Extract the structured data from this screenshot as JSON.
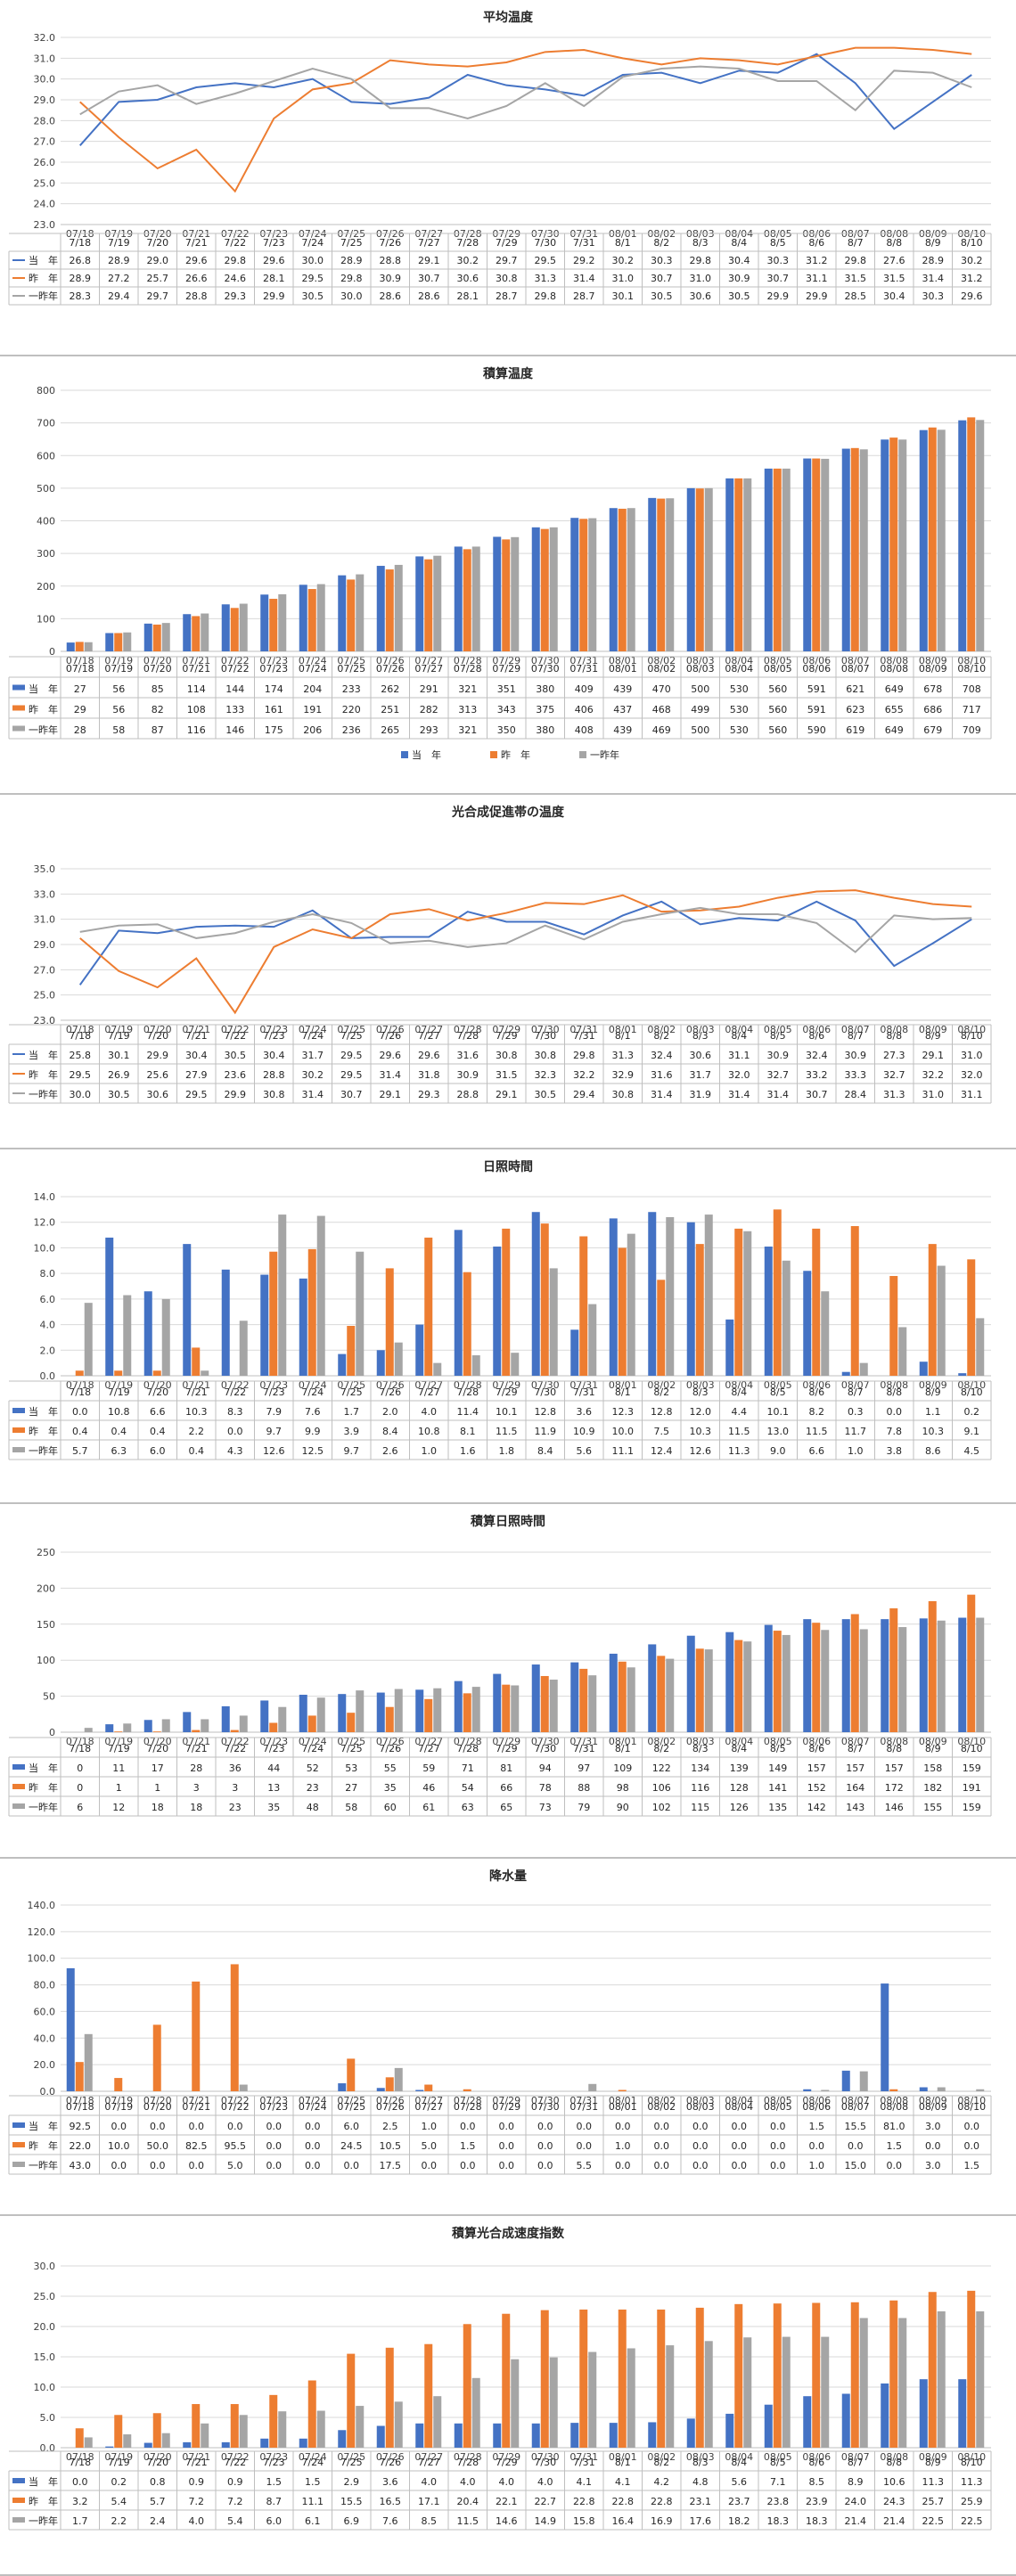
{
  "colors": {
    "current": "#4472C4",
    "prev": "#ED7D31",
    "prev2": "#A5A5A5",
    "grid": "#D9D9D9",
    "axis": "#BFBFBF"
  },
  "legend_labels": [
    "当　年",
    "昨　年",
    "一昨年"
  ],
  "chart_data": [
    {
      "type": "line",
      "title": "平均温度",
      "categories": [
        "07/18",
        "07/19",
        "07/20",
        "07/21",
        "07/22",
        "07/23",
        "07/24",
        "07/25",
        "07/26",
        "07/27",
        "07/28",
        "07/29",
        "07/30",
        "07/31",
        "08/01",
        "08/02",
        "08/03",
        "08/04",
        "08/05",
        "08/06",
        "08/07",
        "08/08",
        "08/09",
        "08/10"
      ],
      "table_categories": [
        "7/18",
        "7/19",
        "7/20",
        "7/21",
        "7/22",
        "7/23",
        "7/24",
        "7/25",
        "7/26",
        "7/27",
        "7/28",
        "7/29",
        "7/30",
        "7/31",
        "8/1",
        "8/2",
        "8/3",
        "8/4",
        "8/5",
        "8/6",
        "8/7",
        "8/8",
        "8/9",
        "8/10"
      ],
      "ylim": [
        23.0,
        32.0
      ],
      "ytick_step": 1,
      "ytick_decimals": 1,
      "grid": true,
      "value_decimals": 1,
      "legend_placement": "table",
      "series": [
        {
          "name": "当　年",
          "values": [
            26.8,
            28.9,
            29.0,
            29.6,
            29.8,
            29.6,
            30.0,
            28.9,
            28.8,
            29.1,
            30.2,
            29.7,
            29.5,
            29.2,
            30.2,
            30.3,
            29.8,
            30.4,
            30.3,
            31.2,
            29.8,
            27.6,
            28.9,
            30.2
          ]
        },
        {
          "name": "昨　年",
          "values": [
            28.9,
            27.2,
            25.7,
            26.6,
            24.6,
            28.1,
            29.5,
            29.8,
            30.9,
            30.7,
            30.6,
            30.8,
            31.3,
            31.4,
            31.0,
            30.7,
            31.0,
            30.9,
            30.7,
            31.1,
            31.5,
            31.5,
            31.4,
            31.2
          ]
        },
        {
          "name": "一昨年",
          "values": [
            28.3,
            29.4,
            29.7,
            28.8,
            29.3,
            29.9,
            30.5,
            30.0,
            28.6,
            28.6,
            28.1,
            28.7,
            29.8,
            28.7,
            30.1,
            30.5,
            30.6,
            30.5,
            29.9,
            29.9,
            28.5,
            30.4,
            30.3,
            29.6
          ]
        }
      ]
    },
    {
      "type": "bar",
      "title": "積算温度",
      "categories": [
        "07/18",
        "07/19",
        "07/20",
        "07/21",
        "07/22",
        "07/23",
        "07/24",
        "07/25",
        "07/26",
        "07/27",
        "07/28",
        "07/29",
        "07/30",
        "07/31",
        "08/01",
        "08/02",
        "08/03",
        "08/04",
        "08/05",
        "08/06",
        "08/07",
        "08/08",
        "08/09",
        "08/10"
      ],
      "table_categories": [
        "07/18",
        "07/19",
        "07/20",
        "07/21",
        "07/22",
        "07/23",
        "07/24",
        "07/25",
        "07/26",
        "07/27",
        "07/28",
        "07/29",
        "07/30",
        "07/31",
        "08/01",
        "08/02",
        "08/03",
        "08/04",
        "08/05",
        "08/06",
        "08/07",
        "08/08",
        "08/09",
        "08/10"
      ],
      "ylim": [
        0,
        800
      ],
      "ytick_step": 100,
      "ytick_decimals": 0,
      "grid": true,
      "value_decimals": 0,
      "legend_placement": "bottom",
      "series": [
        {
          "name": "当　年",
          "values": [
            27,
            56,
            85,
            114,
            144,
            174,
            204,
            233,
            262,
            291,
            321,
            351,
            380,
            409,
            439,
            470,
            500,
            530,
            560,
            591,
            621,
            649,
            678,
            708
          ]
        },
        {
          "name": "昨　年",
          "values": [
            29,
            56,
            82,
            108,
            133,
            161,
            191,
            220,
            251,
            282,
            313,
            343,
            375,
            406,
            437,
            468,
            499,
            530,
            560,
            591,
            623,
            655,
            686,
            717
          ]
        },
        {
          "name": "一昨年",
          "values": [
            28,
            58,
            87,
            116,
            146,
            175,
            206,
            236,
            265,
            293,
            321,
            350,
            380,
            408,
            439,
            469,
            500,
            530,
            560,
            590,
            619,
            649,
            679,
            709
          ]
        }
      ]
    },
    {
      "type": "line",
      "title": "光合成促進帯の温度",
      "categories": [
        "07/18",
        "07/19",
        "07/20",
        "07/21",
        "07/22",
        "07/23",
        "07/24",
        "07/25",
        "07/26",
        "07/27",
        "07/28",
        "07/29",
        "07/30",
        "07/31",
        "08/01",
        "08/02",
        "08/03",
        "08/04",
        "08/05",
        "08/06",
        "08/07",
        "08/08",
        "08/09",
        "08/10"
      ],
      "table_categories": [
        "7/18",
        "7/19",
        "7/20",
        "7/21",
        "7/22",
        "7/23",
        "7/24",
        "7/25",
        "7/26",
        "7/27",
        "7/28",
        "7/29",
        "7/30",
        "7/31",
        "8/1",
        "8/2",
        "8/3",
        "8/4",
        "8/5",
        "8/6",
        "8/7",
        "8/8",
        "8/9",
        "8/10"
      ],
      "ylim": [
        23.0,
        35.0
      ],
      "ytick_step": 2,
      "ytick_decimals": 1,
      "grid": true,
      "value_decimals": 1,
      "legend_placement": "table",
      "series": [
        {
          "name": "当　年",
          "values": [
            25.8,
            30.1,
            29.9,
            30.4,
            30.5,
            30.4,
            31.7,
            29.5,
            29.6,
            29.6,
            31.6,
            30.8,
            30.8,
            29.8,
            31.3,
            32.4,
            30.6,
            31.1,
            30.9,
            32.4,
            30.9,
            27.3,
            29.1,
            31.0
          ]
        },
        {
          "name": "昨　年",
          "values": [
            29.5,
            26.9,
            25.6,
            27.9,
            23.6,
            28.8,
            30.2,
            29.5,
            31.4,
            31.8,
            30.9,
            31.5,
            32.3,
            32.2,
            32.9,
            31.6,
            31.7,
            32.0,
            32.7,
            33.2,
            33.3,
            32.7,
            32.2,
            32.0
          ]
        },
        {
          "name": "一昨年",
          "values": [
            30.0,
            30.5,
            30.6,
            29.5,
            29.9,
            30.8,
            31.4,
            30.7,
            29.1,
            29.3,
            28.8,
            29.1,
            30.5,
            29.4,
            30.8,
            31.4,
            31.9,
            31.4,
            31.4,
            30.7,
            28.4,
            31.3,
            31.0,
            31.1
          ]
        }
      ]
    },
    {
      "type": "bar",
      "title": "日照時間",
      "categories": [
        "07/18",
        "07/19",
        "07/20",
        "07/21",
        "07/22",
        "07/23",
        "07/24",
        "07/25",
        "07/26",
        "07/27",
        "07/28",
        "07/29",
        "07/30",
        "07/31",
        "08/01",
        "08/02",
        "08/03",
        "08/04",
        "08/05",
        "08/06",
        "08/07",
        "08/08",
        "08/09",
        "08/10"
      ],
      "table_categories": [
        "7/18",
        "7/19",
        "7/20",
        "7/21",
        "7/22",
        "7/23",
        "7/24",
        "7/25",
        "7/26",
        "7/27",
        "7/28",
        "7/29",
        "7/30",
        "7/31",
        "8/1",
        "8/2",
        "8/3",
        "8/4",
        "8/5",
        "8/6",
        "8/7",
        "8/8",
        "8/9",
        "8/10"
      ],
      "ylim": [
        0.0,
        14.0
      ],
      "ytick_step": 2,
      "ytick_decimals": 1,
      "grid": true,
      "value_decimals": 1,
      "legend_placement": "table",
      "series": [
        {
          "name": "当　年",
          "values": [
            0.0,
            10.8,
            6.6,
            10.3,
            8.3,
            7.9,
            7.6,
            1.7,
            2.0,
            4.0,
            11.4,
            10.1,
            12.8,
            3.6,
            12.3,
            12.8,
            12.0,
            4.4,
            10.1,
            8.2,
            0.3,
            0.0,
            1.1,
            0.2
          ]
        },
        {
          "name": "昨　年",
          "values": [
            0.4,
            0.4,
            0.4,
            2.2,
            0.0,
            9.7,
            9.9,
            3.9,
            8.4,
            10.8,
            8.1,
            11.5,
            11.9,
            10.9,
            10.0,
            7.5,
            10.3,
            11.5,
            13.0,
            11.5,
            11.7,
            7.8,
            10.3,
            9.1
          ]
        },
        {
          "name": "一昨年",
          "values": [
            5.7,
            6.3,
            6.0,
            0.4,
            4.3,
            12.6,
            12.5,
            9.7,
            2.6,
            1.0,
            1.6,
            1.8,
            8.4,
            5.6,
            11.1,
            12.4,
            12.6,
            11.3,
            9.0,
            6.6,
            1.0,
            3.8,
            8.6,
            4.5
          ]
        }
      ]
    },
    {
      "type": "bar",
      "title": "積算日照時間",
      "categories": [
        "07/18",
        "07/19",
        "07/20",
        "07/21",
        "07/22",
        "07/23",
        "07/24",
        "07/25",
        "07/26",
        "07/27",
        "07/28",
        "07/29",
        "07/30",
        "07/31",
        "08/01",
        "08/02",
        "08/03",
        "08/04",
        "08/05",
        "08/06",
        "08/07",
        "08/08",
        "08/09",
        "08/10"
      ],
      "table_categories": [
        "7/18",
        "7/19",
        "7/20",
        "7/21",
        "7/22",
        "7/23",
        "7/24",
        "7/25",
        "7/26",
        "7/27",
        "7/28",
        "7/29",
        "7/30",
        "7/31",
        "8/1",
        "8/2",
        "8/3",
        "8/4",
        "8/5",
        "8/6",
        "8/7",
        "8/8",
        "8/9",
        "8/10"
      ],
      "ylim": [
        0,
        250
      ],
      "ytick_step": 50,
      "ytick_decimals": 0,
      "grid": true,
      "value_decimals": 0,
      "legend_placement": "table",
      "series": [
        {
          "name": "当　年",
          "values": [
            0,
            11,
            17,
            28,
            36,
            44,
            52,
            53,
            55,
            59,
            71,
            81,
            94,
            97,
            109,
            122,
            134,
            139,
            149,
            157,
            157,
            157,
            158,
            159
          ]
        },
        {
          "name": "昨　年",
          "values": [
            0,
            1,
            1,
            3,
            3,
            13,
            23,
            27,
            35,
            46,
            54,
            66,
            78,
            88,
            98,
            106,
            116,
            128,
            141,
            152,
            164,
            172,
            182,
            191
          ]
        },
        {
          "name": "一昨年",
          "values": [
            6,
            12,
            18,
            18,
            23,
            35,
            48,
            58,
            60,
            61,
            63,
            65,
            73,
            79,
            90,
            102,
            115,
            126,
            135,
            142,
            143,
            146,
            155,
            159
          ]
        }
      ]
    },
    {
      "type": "bar",
      "title": "降水量",
      "categories": [
        "07/18",
        "07/19",
        "07/20",
        "07/21",
        "07/22",
        "07/23",
        "07/24",
        "07/25",
        "07/26",
        "07/27",
        "07/28",
        "07/29",
        "07/30",
        "07/31",
        "08/01",
        "08/02",
        "08/03",
        "08/04",
        "08/05",
        "08/06",
        "08/07",
        "08/08",
        "08/09",
        "08/10"
      ],
      "table_categories": [
        "07/18",
        "07/19",
        "07/20",
        "07/21",
        "07/22",
        "07/23",
        "07/24",
        "07/25",
        "07/26",
        "07/27",
        "07/28",
        "07/29",
        "07/30",
        "07/31",
        "08/01",
        "08/02",
        "08/03",
        "08/04",
        "08/05",
        "08/06",
        "08/07",
        "08/08",
        "08/09",
        "08/10"
      ],
      "ylim": [
        0.0,
        140.0
      ],
      "ytick_step": 20,
      "ytick_decimals": 1,
      "grid": true,
      "value_decimals": 1,
      "legend_placement": "table",
      "series": [
        {
          "name": "当　年",
          "values": [
            92.5,
            0.0,
            0.0,
            0.0,
            0.0,
            0.0,
            0.0,
            6.0,
            2.5,
            1.0,
            0.0,
            0.0,
            0.0,
            0.0,
            0.0,
            0.0,
            0.0,
            0.0,
            0.0,
            1.5,
            15.5,
            81.0,
            3.0,
            0.0
          ]
        },
        {
          "name": "昨　年",
          "values": [
            22.0,
            10.0,
            50.0,
            82.5,
            95.5,
            0.0,
            0.0,
            24.5,
            10.5,
            5.0,
            1.5,
            0.0,
            0.0,
            0.0,
            1.0,
            0.0,
            0.0,
            0.0,
            0.0,
            0.0,
            0.0,
            1.5,
            0.0,
            0.0
          ]
        },
        {
          "name": "一昨年",
          "values": [
            43.0,
            0.0,
            0.0,
            0.0,
            5.0,
            0.0,
            0.0,
            0.0,
            17.5,
            0.0,
            0.0,
            0.0,
            0.0,
            5.5,
            0.0,
            0.0,
            0.0,
            0.0,
            0.0,
            1.0,
            15.0,
            0.0,
            3.0,
            1.5
          ]
        }
      ]
    },
    {
      "type": "bar",
      "title": "積算光合成速度指数",
      "categories": [
        "07/18",
        "07/19",
        "07/20",
        "07/21",
        "07/22",
        "07/23",
        "07/24",
        "07/25",
        "07/26",
        "07/27",
        "07/28",
        "07/29",
        "07/30",
        "07/31",
        "08/01",
        "08/02",
        "08/03",
        "08/04",
        "08/05",
        "08/06",
        "08/07",
        "08/08",
        "08/09",
        "08/10"
      ],
      "table_categories": [
        "7/18",
        "7/19",
        "7/20",
        "7/21",
        "7/22",
        "7/23",
        "7/24",
        "7/25",
        "7/26",
        "7/27",
        "7/28",
        "7/29",
        "7/30",
        "7/31",
        "8/1",
        "8/2",
        "8/3",
        "8/4",
        "8/5",
        "8/6",
        "8/7",
        "8/8",
        "8/9",
        "8/10"
      ],
      "ylim": [
        0.0,
        30.0
      ],
      "ytick_step": 5,
      "ytick_decimals": 1,
      "grid": true,
      "value_decimals": 1,
      "legend_placement": "table",
      "series": [
        {
          "name": "当　年",
          "values": [
            0.0,
            0.2,
            0.8,
            0.9,
            0.9,
            1.5,
            1.5,
            2.9,
            3.6,
            4.0,
            4.0,
            4.0,
            4.0,
            4.1,
            4.1,
            4.2,
            4.8,
            5.6,
            7.1,
            8.5,
            8.9,
            10.6,
            11.3,
            11.3
          ]
        },
        {
          "name": "昨　年",
          "values": [
            3.2,
            5.4,
            5.7,
            7.2,
            7.2,
            8.7,
            11.1,
            15.5,
            16.5,
            17.1,
            20.4,
            22.1,
            22.7,
            22.8,
            22.8,
            22.8,
            23.1,
            23.7,
            23.8,
            23.9,
            24.0,
            24.3,
            25.7,
            25.9
          ]
        },
        {
          "name": "一昨年",
          "values": [
            1.7,
            2.2,
            2.4,
            4.0,
            5.4,
            6.0,
            6.1,
            6.9,
            7.6,
            8.5,
            11.5,
            14.6,
            14.9,
            15.8,
            16.4,
            16.9,
            17.6,
            18.2,
            18.3,
            18.3,
            21.4,
            21.4,
            22.5,
            22.5
          ]
        }
      ]
    }
  ]
}
